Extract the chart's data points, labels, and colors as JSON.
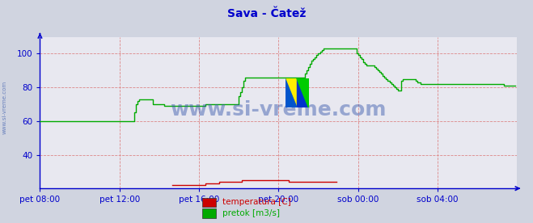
{
  "title": "Sava - Čatež",
  "title_color": "#0000cc",
  "bg_color": "#d0d4e0",
  "plot_bg_color": "#e8e8f0",
  "grid_color": "#dd8888",
  "ylabel_left": "",
  "xlabel": "",
  "ylim": [
    20,
    110
  ],
  "yticks": [
    40,
    60,
    80,
    100
  ],
  "xtick_labels": [
    "pet 08:00",
    "pet 12:00",
    "pet 16:00",
    "pet 20:00",
    "sob 00:00",
    "sob 04:00"
  ],
  "xtick_positions": [
    0,
    48,
    96,
    144,
    192,
    240
  ],
  "total_points": 288,
  "watermark": "www.si-vreme.com",
  "watermark_color": "#3355aa",
  "side_watermark": "www.si-vreme.com",
  "legend_items": [
    {
      "label": "temperatura [C]",
      "color": "#cc0000"
    },
    {
      "label": "pretok [m3/s]",
      "color": "#00aa00"
    }
  ],
  "pretok_y": [
    60,
    60,
    60,
    60,
    60,
    60,
    60,
    60,
    60,
    60,
    60,
    60,
    60,
    60,
    60,
    60,
    60,
    60,
    60,
    60,
    60,
    60,
    60,
    60,
    60,
    60,
    60,
    60,
    60,
    60,
    60,
    60,
    60,
    60,
    60,
    60,
    60,
    60,
    60,
    60,
    60,
    60,
    60,
    60,
    60,
    60,
    60,
    60,
    60,
    60,
    60,
    60,
    60,
    60,
    60,
    60,
    60,
    65,
    70,
    72,
    73,
    73,
    73,
    73,
    73,
    73,
    73,
    73,
    70,
    70,
    70,
    70,
    70,
    70,
    70,
    69,
    69,
    69,
    69,
    69,
    69,
    69,
    69,
    69,
    69,
    69,
    69,
    69,
    69,
    69,
    69,
    69,
    69,
    69,
    69,
    69,
    69,
    69,
    69,
    69,
    70,
    70,
    70,
    70,
    70,
    70,
    70,
    70,
    70,
    70,
    70,
    70,
    70,
    70,
    70,
    70,
    70,
    70,
    70,
    70,
    75,
    77,
    80,
    84,
    86,
    86,
    86,
    86,
    86,
    86,
    86,
    86,
    86,
    86,
    86,
    86,
    86,
    86,
    86,
    86,
    86,
    86,
    86,
    86,
    86,
    86,
    86,
    86,
    86,
    86,
    86,
    86,
    86,
    86,
    86,
    86,
    86,
    86,
    86,
    86,
    88,
    90,
    92,
    94,
    96,
    97,
    98,
    99,
    100,
    101,
    102,
    103,
    103,
    103,
    103,
    103,
    103,
    103,
    103,
    103,
    103,
    103,
    103,
    103,
    103,
    103,
    103,
    103,
    103,
    103,
    103,
    100,
    99,
    98,
    97,
    95,
    94,
    93,
    93,
    93,
    93,
    93,
    92,
    91,
    90,
    89,
    88,
    87,
    86,
    85,
    84,
    83,
    82,
    81,
    80,
    79,
    78,
    78,
    84,
    85,
    85,
    85,
    85,
    85,
    85,
    85,
    85,
    84,
    83,
    83,
    82,
    82,
    82,
    82,
    82,
    82,
    82,
    82,
    82,
    82,
    82,
    82,
    82,
    82,
    82,
    82,
    82,
    82,
    82,
    82,
    82,
    82,
    82,
    82,
    82,
    82,
    82,
    82,
    82,
    82,
    82,
    82,
    82,
    82,
    82,
    82,
    82,
    82,
    82,
    82,
    82,
    82,
    82,
    82,
    82,
    82,
    82,
    82,
    82,
    82,
    81,
    81,
    81,
    81,
    81,
    81,
    81,
    81
  ],
  "temperatura_start": 80,
  "temperatura_y": [
    22,
    22,
    22,
    22,
    22,
    22,
    22,
    22,
    22,
    22,
    22,
    22,
    22,
    22,
    22,
    22,
    22,
    22,
    22,
    22,
    23,
    23,
    23,
    23,
    23,
    23,
    23,
    23,
    24,
    24,
    24,
    24,
    24,
    24,
    24,
    24,
    24,
    24,
    24,
    24,
    24,
    24,
    25,
    25,
    25,
    25,
    25,
    25,
    25,
    25,
    25,
    25,
    25,
    25,
    25,
    25,
    25,
    25,
    25,
    25,
    25,
    25,
    25,
    25,
    25,
    25,
    25,
    25,
    25,
    25,
    24,
    24,
    24,
    24,
    24,
    24,
    24,
    24,
    24,
    24,
    24,
    24,
    24,
    24,
    24,
    24,
    24,
    24,
    24,
    24,
    24,
    24,
    24,
    24,
    24,
    24,
    24,
    24,
    24,
    24
  ],
  "axis_color": "#0000cc",
  "tick_label_color": "#0000cc",
  "tick_label_fontsize": 7.5,
  "title_fontsize": 10,
  "watermark_fontsize": 18,
  "watermark_alpha": 0.45
}
